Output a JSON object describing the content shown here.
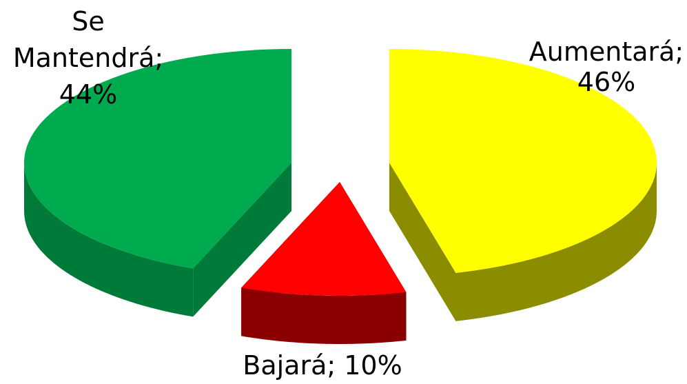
{
  "chart_data": {
    "type": "pie",
    "style": "3d-exploded",
    "series": [
      {
        "values": [
          {
            "category": "Aumentará",
            "value": 46,
            "label_lines": [
              "Aumentará;",
              "46%"
            ],
            "top_color": "#FFFF00",
            "side_color": "#8C8C00"
          },
          {
            "category": "Bajará",
            "value": 10,
            "label_lines": [
              "Bajará; 10%"
            ],
            "top_color": "#FF0000",
            "side_color": "#8A0000"
          },
          {
            "category": "Se Mantendrá",
            "value": 44,
            "label_lines": [
              "Se",
              "Mantendrá;",
              "44%"
            ],
            "top_color": "#00AA4E",
            "side_color": "#007A38"
          }
        ]
      }
    ],
    "legend": "none",
    "data_labels": "category; percent"
  }
}
